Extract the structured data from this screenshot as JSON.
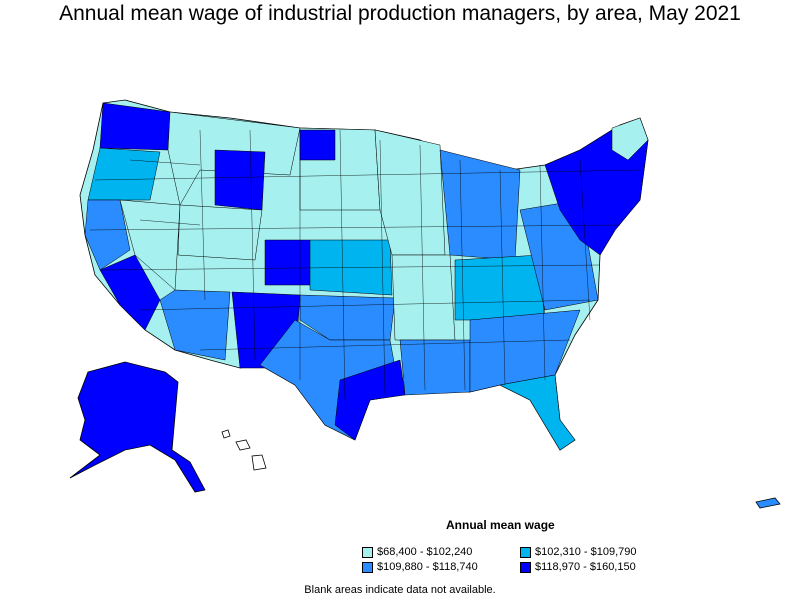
{
  "title": "Annual mean wage of industrial production managers, by area, May 2021",
  "legend": {
    "title": "Annual mean wage",
    "items": [
      {
        "label": "$68,400 - $102,240",
        "color": "#a6f0f0"
      },
      {
        "label": "$102,310 - $109,790",
        "color": "#00b4f0"
      },
      {
        "label": "$109,880 - $118,740",
        "color": "#2a8cff"
      },
      {
        "label": "$118,970 - $160,150",
        "color": "#0000ff"
      }
    ]
  },
  "note": "Blank areas indicate data not available.",
  "colors": {
    "no_data": "#ffffff",
    "border": "#000000"
  }
}
